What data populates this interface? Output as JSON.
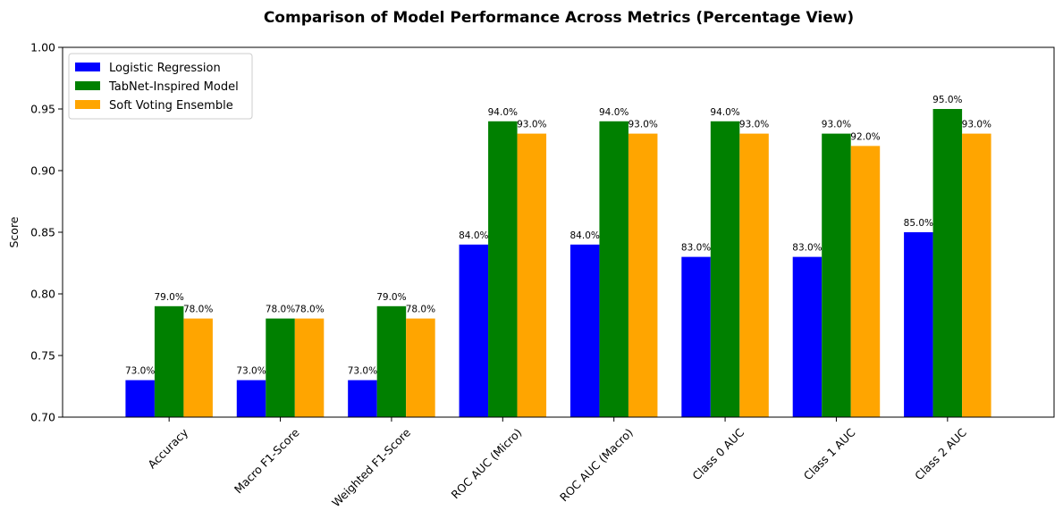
{
  "chart_data": {
    "type": "bar",
    "title": "Comparison of Model Performance Across Metrics (Percentage View)",
    "xlabel": "",
    "ylabel": "Score",
    "ylim": [
      0.7,
      1.0
    ],
    "yticks": [
      0.7,
      0.75,
      0.8,
      0.85,
      0.9,
      0.95,
      1.0
    ],
    "ytick_labels": [
      "0.70",
      "0.75",
      "0.80",
      "0.85",
      "0.90",
      "0.95",
      "1.00"
    ],
    "categories": [
      "Accuracy",
      "Macro F1-Score",
      "Weighted F1-Score",
      "ROC AUC (Micro)",
      "ROC AUC (Macro)",
      "Class 0 AUC",
      "Class 1 AUC",
      "Class 2 AUC"
    ],
    "series": [
      {
        "name": "Logistic Regression",
        "color": "#0000ff",
        "values": [
          0.73,
          0.73,
          0.73,
          0.84,
          0.84,
          0.83,
          0.83,
          0.85
        ],
        "labels": [
          "73.0%",
          "73.0%",
          "73.0%",
          "84.0%",
          "84.0%",
          "83.0%",
          "83.0%",
          "85.0%"
        ]
      },
      {
        "name": "TabNet-Inspired Model",
        "color": "#008000",
        "values": [
          0.79,
          0.78,
          0.79,
          0.94,
          0.94,
          0.94,
          0.93,
          0.95
        ],
        "labels": [
          "79.0%",
          "78.0%",
          "79.0%",
          "94.0%",
          "94.0%",
          "94.0%",
          "93.0%",
          "95.0%"
        ]
      },
      {
        "name": "Soft Voting Ensemble",
        "color": "#ffa500",
        "values": [
          0.78,
          0.78,
          0.78,
          0.93,
          0.93,
          0.93,
          0.92,
          0.93
        ],
        "labels": [
          "78.0%",
          "78.0%",
          "78.0%",
          "93.0%",
          "93.0%",
          "93.0%",
          "92.0%",
          "93.0%"
        ]
      }
    ],
    "legend_position": "top-left",
    "grid": false
  }
}
